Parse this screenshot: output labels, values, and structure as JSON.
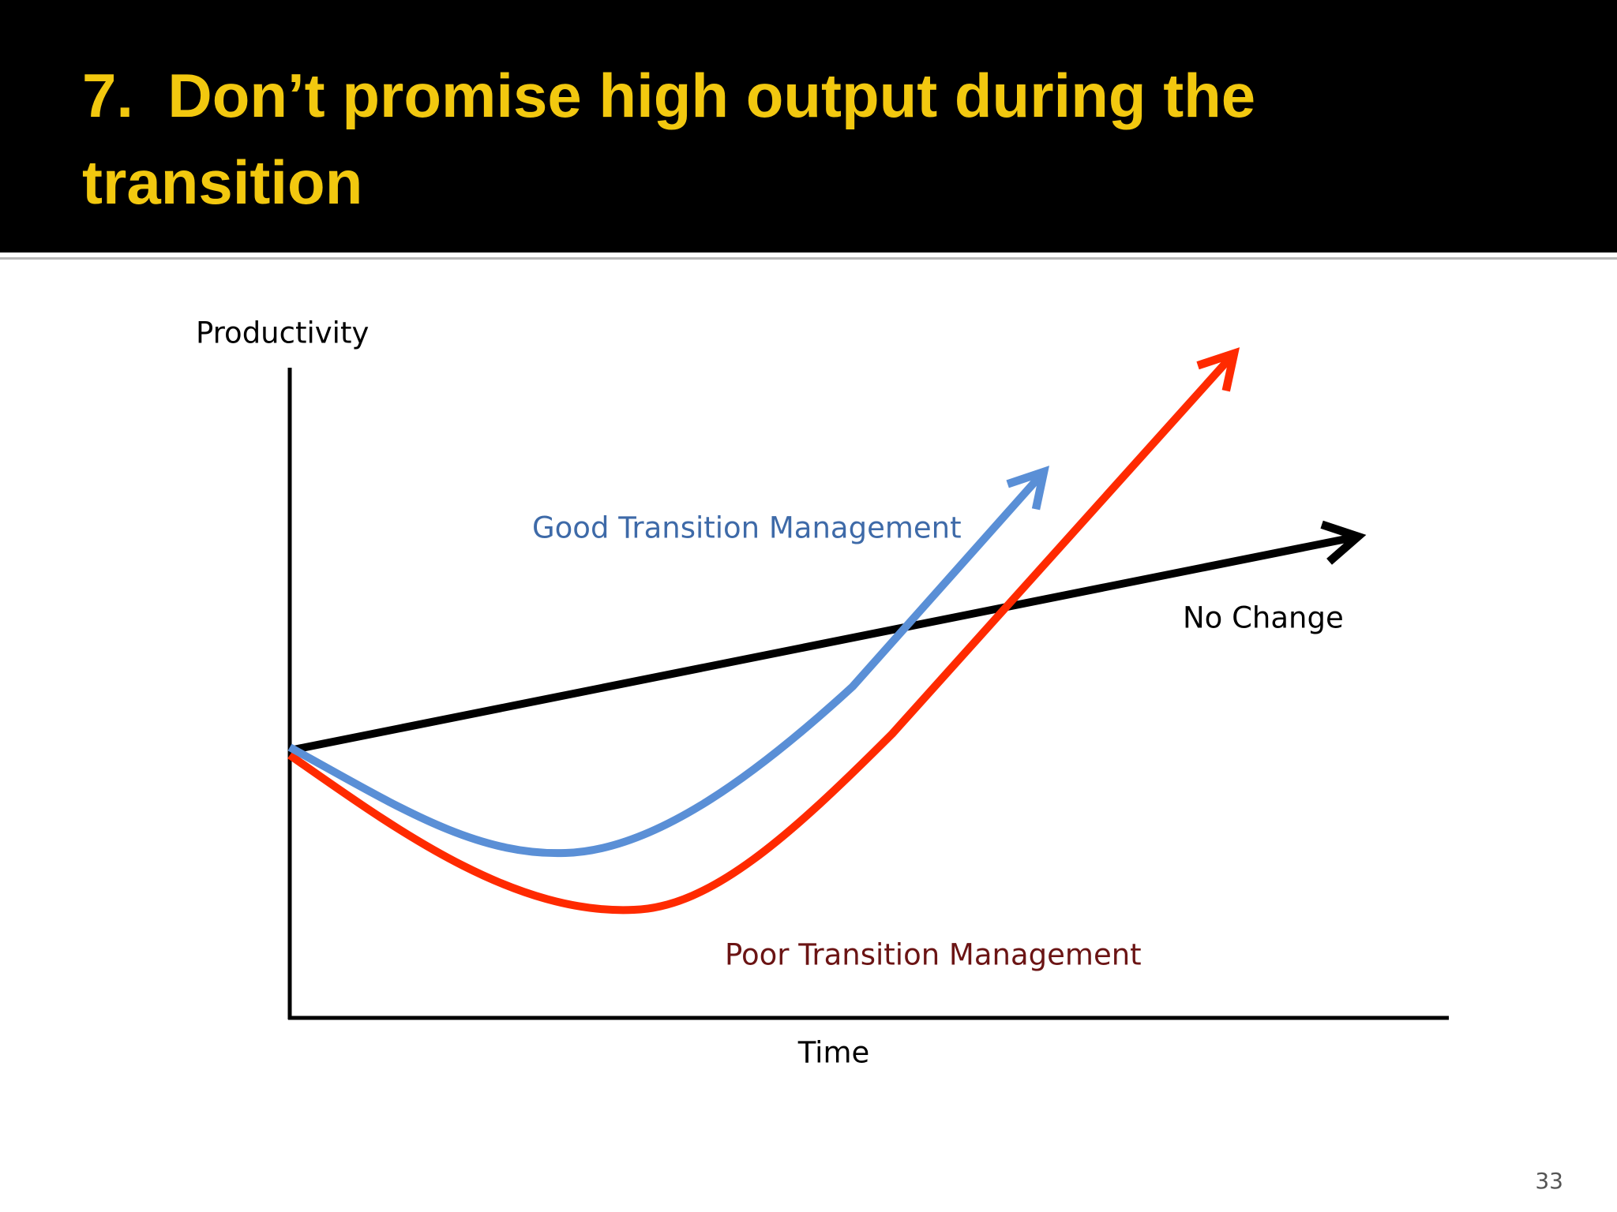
{
  "slide": {
    "title_lines": [
      "7.  Don’t promise high output during the",
      "transition"
    ],
    "page_number": "33"
  },
  "diagram": {
    "y_axis_label": "Productivity",
    "x_axis_label": "Time",
    "curves": [
      {
        "label": "Good Transition Management"
      },
      {
        "label": "Poor Transition Management"
      },
      {
        "label": "No Change"
      }
    ]
  }
}
